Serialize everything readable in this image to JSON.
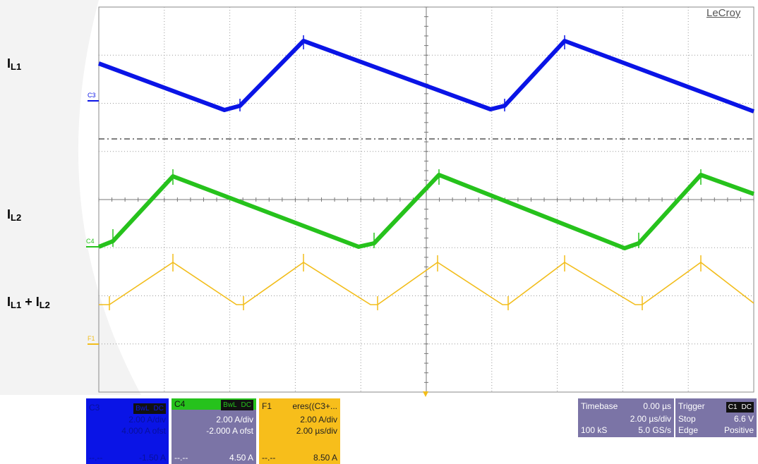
{
  "labels": {
    "il1": {
      "main": "I",
      "sub": "L1"
    },
    "il2": {
      "main": "I",
      "sub": "L2"
    },
    "sum": {
      "a_main": "I",
      "a_sub": "L1",
      "plus": " + ",
      "b_main": "I",
      "b_sub": "L2"
    }
  },
  "brand": "LeCroy",
  "markers": {
    "c3": "C3",
    "c4": "C4",
    "f1": "F1"
  },
  "colors": {
    "c3": "#0a14e6",
    "c4": "#26c21c",
    "f1": "#f2bd1b",
    "panel": "#7b74a6",
    "grid": "#9a9a9a"
  },
  "panels": {
    "c3": {
      "name": "C3",
      "badge1": "BwL",
      "badge2": "DC",
      "scale": "2.00 A/div",
      "offset": "4.000 A ofst",
      "dashes": "--.--",
      "value": "-1.50 A"
    },
    "c4": {
      "name": "C4",
      "badge1": "BwL",
      "badge2": "DC",
      "scale": "2.00 A/div",
      "offset": "-2.000 A ofst",
      "dashes": "--.--",
      "value": "4.50 A"
    },
    "f1": {
      "name": "F1",
      "expr": "eres((C3+...",
      "scale": "2.00 A/div",
      "time": "2.00 µs/div",
      "dashes": "--.--",
      "value": "8.50 A"
    },
    "timebase": {
      "label": "Timebase",
      "delay": "0.00 µs",
      "div": "2.00 µs/div",
      "samples": "100 kS",
      "rate": "5.0 GS/s"
    },
    "trigger": {
      "label": "Trigger",
      "badge1": "C1",
      "badge2": "DC",
      "mode": "Stop",
      "level": "6.6 V",
      "type": "Edge",
      "slope": "Positive"
    }
  }
}
